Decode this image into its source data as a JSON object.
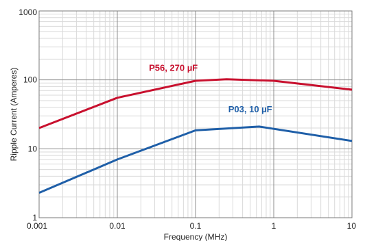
{
  "chart_data": {
    "type": "line",
    "title": "",
    "xlabel": "Frequency (MHz)",
    "ylabel": "Ripple Current (Amperes)",
    "x_scale": "log",
    "y_scale": "log",
    "xlim": [
      0.001,
      10
    ],
    "ylim": [
      1,
      1000
    ],
    "x_ticks": [
      {
        "value": 0.001,
        "label": "0.001"
      },
      {
        "value": 0.01,
        "label": "0.01"
      },
      {
        "value": 0.1,
        "label": "0.1"
      },
      {
        "value": 1,
        "label": "1"
      },
      {
        "value": 10,
        "label": "10"
      }
    ],
    "y_ticks": [
      {
        "value": 1,
        "label": "1"
      },
      {
        "value": 10,
        "label": "10"
      },
      {
        "value": 100,
        "label": "100"
      },
      {
        "value": 1000,
        "label": "1000"
      }
    ],
    "grid": true,
    "series": [
      {
        "name": "P56, 270 µF",
        "color": "#c8102e",
        "points": [
          {
            "x": 0.001,
            "y": 20
          },
          {
            "x": 0.01,
            "y": 55
          },
          {
            "x": 0.1,
            "y": 97
          },
          {
            "x": 0.25,
            "y": 102
          },
          {
            "x": 1,
            "y": 97
          },
          {
            "x": 10,
            "y": 72
          }
        ]
      },
      {
        "name": "P03, 10 µF",
        "color": "#1f5fa8",
        "points": [
          {
            "x": 0.001,
            "y": 2.3
          },
          {
            "x": 0.01,
            "y": 7
          },
          {
            "x": 0.1,
            "y": 18.5
          },
          {
            "x": 0.65,
            "y": 21
          },
          {
            "x": 10,
            "y": 13
          }
        ]
      }
    ]
  }
}
